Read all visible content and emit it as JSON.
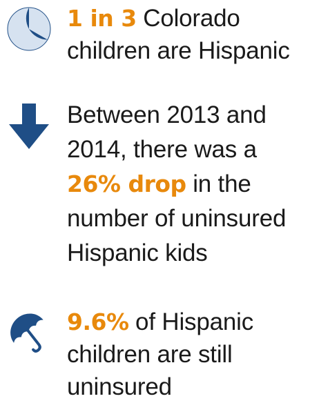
{
  "colors": {
    "accent": "#e8890c",
    "icon_dark": "#1f4e86",
    "icon_light": "#d6e2f0",
    "text": "#1a1a1a"
  },
  "facts": [
    {
      "icon": "pie-chart-icon",
      "highlight": "1 in 3",
      "text_after": " Colorado children are Hispanic"
    },
    {
      "icon": "down-arrow-icon",
      "text_before": "Between 2013 and 2014, there was a ",
      "highlight": "26% drop",
      "text_after": " in the number of uninsured Hispanic kids"
    },
    {
      "icon": "umbrella-icon",
      "highlight": "9.6%",
      "text_after": " of Hispanic children are still uninsured"
    }
  ]
}
